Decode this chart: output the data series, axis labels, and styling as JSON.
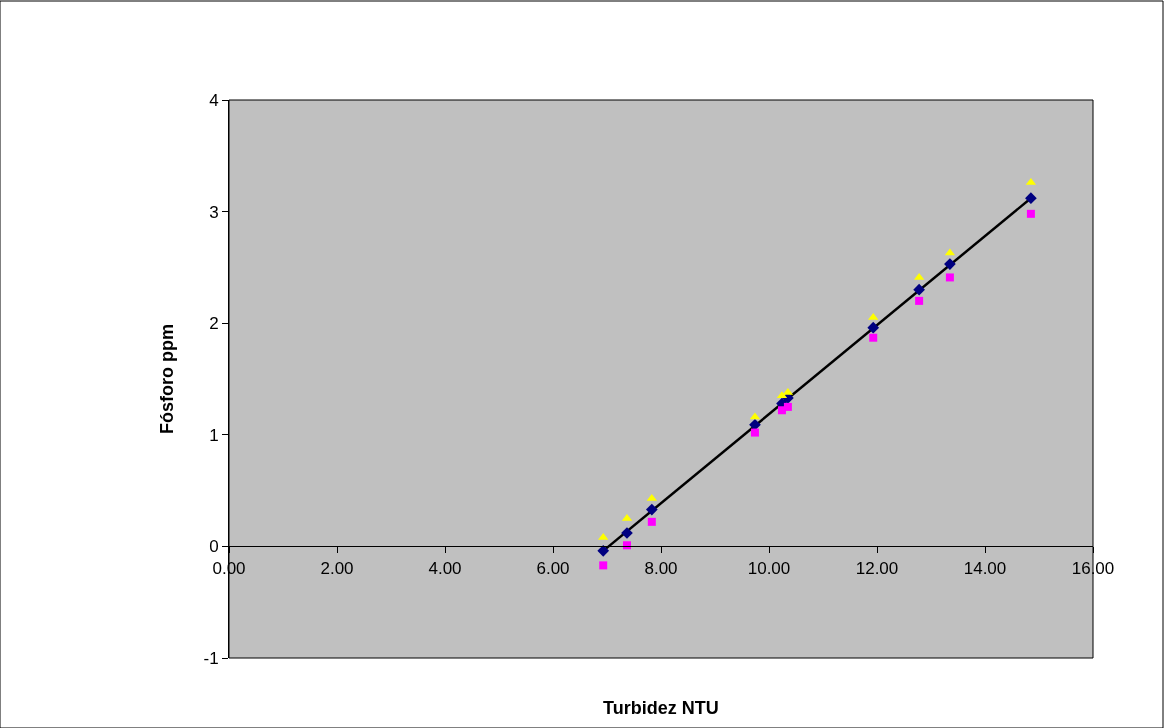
{
  "chart_data": {
    "type": "scatter",
    "xlabel": "Turbidez NTU",
    "ylabel": "Fósforo ppm",
    "xlim": [
      0,
      16
    ],
    "ylim": [
      -1,
      4
    ],
    "xticks": [
      {
        "value": 0,
        "label": "0.00"
      },
      {
        "value": 2,
        "label": "2.00"
      },
      {
        "value": 4,
        "label": "4.00"
      },
      {
        "value": 6,
        "label": "6.00"
      },
      {
        "value": 8,
        "label": "8.00"
      },
      {
        "value": 10,
        "label": "10.00"
      },
      {
        "value": 12,
        "label": "12.00"
      },
      {
        "value": 14,
        "label": "14.00"
      },
      {
        "value": 16,
        "label": "16.00"
      }
    ],
    "yticks": [
      -1,
      0,
      1,
      2,
      3,
      4
    ],
    "x": [
      6.93,
      7.37,
      7.83,
      9.74,
      10.24,
      10.35,
      11.93,
      12.78,
      13.35,
      14.85
    ],
    "grid": false,
    "legend": false,
    "series": [
      {
        "color": "#000080",
        "marker": "diamond",
        "values": [
          -0.04,
          0.12,
          0.33,
          1.09,
          1.28,
          1.33,
          1.96,
          2.3,
          2.53,
          3.12
        ]
      },
      {
        "color": "#ffff00",
        "marker": "triangle",
        "values": [
          0.08,
          0.25,
          0.43,
          1.16,
          1.35,
          1.38,
          2.05,
          2.41,
          2.63,
          3.26
        ]
      },
      {
        "color": "#ff00ff",
        "marker": "square",
        "values": [
          -0.17,
          0.01,
          0.22,
          1.02,
          1.22,
          1.25,
          1.87,
          2.2,
          2.41,
          2.98
        ]
      },
      {
        "type": "line",
        "color": "#000000",
        "marker": "none",
        "x": [
          6.93,
          14.85
        ],
        "values": [
          -0.04,
          3.12
        ]
      }
    ]
  }
}
